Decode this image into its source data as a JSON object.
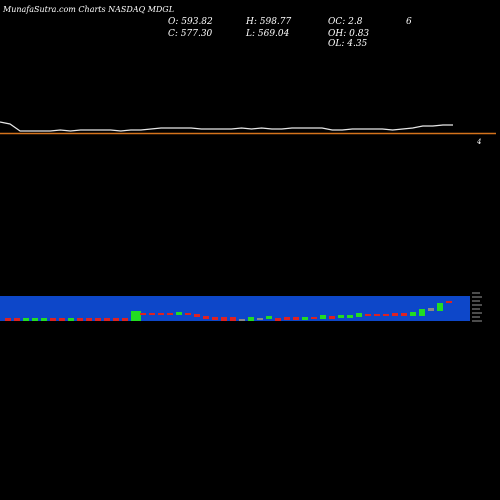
{
  "header": {
    "source": "MunafaSutra.com",
    "label": "Charts NASDAQ MDGL"
  },
  "ohlc": {
    "open": "O: 593.82",
    "high": "H: 598.77",
    "oc": "OC: 2.8",
    "close": "C: 577.30",
    "low": "L: 569.04",
    "oh": "OH: 0.83",
    "ol": "OL: 4.35",
    "extra": "6"
  },
  "right_label": "4",
  "colors": {
    "background": "#000000",
    "price_line": "#e8e8e8",
    "baseline": "#d4731c",
    "volume_band": "#0d47c9",
    "up_candle": "#22dd22",
    "down_candle": "#dd2222",
    "neutral_candle": "#888888"
  },
  "chart_data": {
    "type": "line",
    "title": "",
    "price": [
      124,
      131,
      131,
      131,
      131,
      130,
      131,
      130,
      130,
      130,
      130,
      131,
      130,
      130,
      129,
      128,
      128,
      128,
      128,
      129,
      129,
      129,
      129,
      128,
      129,
      128,
      129,
      129,
      128,
      128,
      128,
      128,
      130,
      130,
      129,
      129,
      129,
      129,
      130,
      129,
      128,
      126,
      126,
      125,
      125
    ],
    "candles": [
      {
        "body": [
          0,
          3
        ],
        "dir": "down"
      },
      {
        "body": [
          0,
          3
        ],
        "dir": "down"
      },
      {
        "body": [
          0,
          3
        ],
        "dir": "up"
      },
      {
        "body": [
          0,
          3
        ],
        "dir": "up"
      },
      {
        "body": [
          0,
          3
        ],
        "dir": "up"
      },
      {
        "body": [
          0,
          3
        ],
        "dir": "down"
      },
      {
        "body": [
          0,
          3
        ],
        "dir": "down"
      },
      {
        "body": [
          0,
          3
        ],
        "dir": "up"
      },
      {
        "body": [
          0,
          3
        ],
        "dir": "down"
      },
      {
        "body": [
          0,
          3
        ],
        "dir": "down"
      },
      {
        "body": [
          0,
          3
        ],
        "dir": "down"
      },
      {
        "body": [
          0,
          3
        ],
        "dir": "down"
      },
      {
        "body": [
          0,
          3
        ],
        "dir": "down"
      },
      {
        "body": [
          0,
          3
        ],
        "dir": "down"
      },
      {
        "body": [
          0,
          10
        ],
        "dir": "up"
      },
      {
        "body": [
          6,
          8
        ],
        "dir": "down"
      },
      {
        "body": [
          6,
          8
        ],
        "dir": "down"
      },
      {
        "body": [
          6,
          8
        ],
        "dir": "down"
      },
      {
        "body": [
          6,
          8
        ],
        "dir": "down"
      },
      {
        "body": [
          6,
          9
        ],
        "dir": "up"
      },
      {
        "body": [
          6,
          8
        ],
        "dir": "down"
      },
      {
        "body": [
          4,
          7
        ],
        "dir": "down"
      },
      {
        "body": [
          2,
          5
        ],
        "dir": "down"
      },
      {
        "body": [
          1,
          4
        ],
        "dir": "down"
      },
      {
        "body": [
          0,
          4
        ],
        "dir": "down"
      },
      {
        "body": [
          0,
          4
        ],
        "dir": "down"
      },
      {
        "body": [
          0,
          2
        ],
        "dir": "neutral"
      },
      {
        "body": [
          0,
          4
        ],
        "dir": "up"
      },
      {
        "body": [
          1,
          3
        ],
        "dir": "neutral"
      },
      {
        "body": [
          2,
          5
        ],
        "dir": "up"
      },
      {
        "body": [
          0,
          3
        ],
        "dir": "down"
      },
      {
        "body": [
          1,
          4
        ],
        "dir": "down"
      },
      {
        "body": [
          1,
          4
        ],
        "dir": "down"
      },
      {
        "body": [
          1,
          4
        ],
        "dir": "up"
      },
      {
        "body": [
          2,
          4
        ],
        "dir": "down"
      },
      {
        "body": [
          2,
          6
        ],
        "dir": "up"
      },
      {
        "body": [
          2,
          5
        ],
        "dir": "down"
      },
      {
        "body": [
          3,
          6
        ],
        "dir": "up"
      },
      {
        "body": [
          3,
          6
        ],
        "dir": "up"
      },
      {
        "body": [
          4,
          8
        ],
        "dir": "up"
      },
      {
        "body": [
          5,
          7
        ],
        "dir": "down"
      },
      {
        "body": [
          5,
          7
        ],
        "dir": "down"
      },
      {
        "body": [
          5,
          7
        ],
        "dir": "down"
      },
      {
        "body": [
          5,
          8
        ],
        "dir": "down"
      },
      {
        "body": [
          5,
          8
        ],
        "dir": "down"
      },
      {
        "body": [
          5,
          9
        ],
        "dir": "up"
      },
      {
        "body": [
          5,
          12
        ],
        "dir": "up"
      },
      {
        "body": [
          10,
          13
        ],
        "dir": "neutral"
      },
      {
        "body": [
          10,
          18
        ],
        "dir": "up"
      },
      {
        "body": [
          18,
          20
        ],
        "dir": "down"
      }
    ]
  }
}
